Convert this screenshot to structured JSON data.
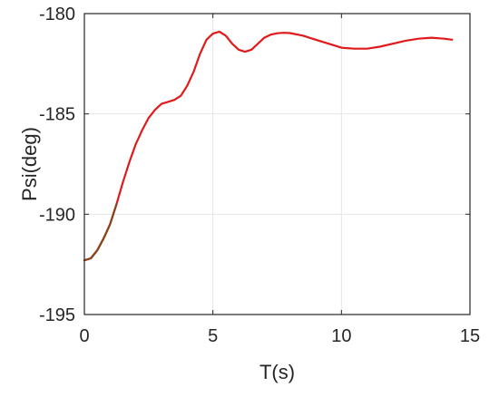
{
  "chart_data": {
    "type": "line",
    "title": "",
    "xlabel": "T(s)",
    "ylabel": "Psi(deg)",
    "xlim": [
      0,
      15
    ],
    "ylim": [
      -195,
      -180
    ],
    "xticks": [
      0,
      5,
      10,
      15
    ],
    "yticks": [
      -195,
      -190,
      -185,
      -180
    ],
    "xtick_labels": [
      "0",
      "5",
      "10",
      "15"
    ],
    "ytick_labels": [
      "-195",
      "-190",
      "-185",
      "-180"
    ],
    "grid": true,
    "legend": "none",
    "colors": {
      "line": "#e01a1a",
      "early_segment": "#7a4a1a",
      "grid": "#e6e6e6",
      "axis": "#262626"
    },
    "series": [
      {
        "color": "#e01a1a",
        "x": [
          0,
          0.25,
          0.5,
          0.75,
          1.0,
          1.25,
          1.5,
          1.75,
          2.0,
          2.25,
          2.5,
          2.75,
          3.0,
          3.25,
          3.5,
          3.75,
          4.0,
          4.25,
          4.5,
          4.75,
          5.0,
          5.25,
          5.5,
          5.75,
          6.0,
          6.25,
          6.5,
          6.75,
          7.0,
          7.25,
          7.5,
          7.75,
          8.0,
          8.5,
          9.0,
          9.5,
          10.0,
          10.5,
          11.0,
          11.5,
          12.0,
          12.5,
          13.0,
          13.5,
          14.0,
          14.3
        ],
        "y": [
          -192.3,
          -192.2,
          -191.8,
          -191.2,
          -190.5,
          -189.5,
          -188.4,
          -187.4,
          -186.5,
          -185.8,
          -185.2,
          -184.8,
          -184.5,
          -184.4,
          -184.3,
          -184.1,
          -183.6,
          -182.9,
          -182.0,
          -181.3,
          -181.0,
          -180.9,
          -181.1,
          -181.5,
          -181.8,
          -181.9,
          -181.8,
          -181.5,
          -181.2,
          -181.05,
          -180.98,
          -180.96,
          -180.97,
          -181.1,
          -181.3,
          -181.5,
          -181.7,
          -181.75,
          -181.75,
          -181.65,
          -181.5,
          -181.35,
          -181.25,
          -181.2,
          -181.25,
          -181.3
        ]
      }
    ]
  }
}
